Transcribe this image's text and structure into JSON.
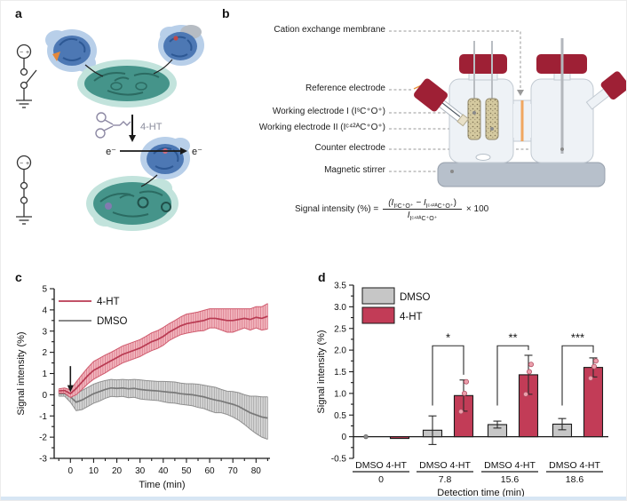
{
  "panels": {
    "a": "a",
    "b": "b",
    "c": "c",
    "d": "d"
  },
  "panel_a": {
    "arrow_label": "4-HT",
    "electron_left": "e⁻",
    "electron_right": "e⁻"
  },
  "panel_b": {
    "labels": [
      "Cation exchange membrane",
      "Reference electrode",
      "Working electrode I (IˢC⁺O⁺)",
      "Working electrode II (Iᶜ⁴²ᴬC⁺O⁺)",
      "Counter electrode",
      "Magnetic stirrer"
    ],
    "formula": {
      "lhs": "Signal intensity (%) =",
      "num_parts": [
        "(I",
        "IˢC⁺O⁺",
        " − I",
        "Iᶜ⁴²ᴬC⁺O⁺",
        ")"
      ],
      "den_parts": [
        "I",
        "Iᶜ⁴²ᴬC⁺O⁺"
      ],
      "rhs": "× 100"
    },
    "colors": {
      "cap_red": "#9e2035",
      "membrane_orange": "#f0a65f",
      "stirrer_gray": "#b7c0cb",
      "cell_fill": "#eef2f6"
    }
  },
  "chart_data": [
    {
      "panel": "c",
      "type": "line",
      "xlabel": "Time (min)",
      "ylabel": "Signal intensity (%)",
      "xlim": [
        -7,
        86
      ],
      "ylim": [
        -3,
        5
      ],
      "xticks": [
        0,
        10,
        20,
        30,
        40,
        50,
        60,
        70,
        80
      ],
      "yticks": [
        -3,
        -2,
        -1,
        0,
        1,
        2,
        3,
        4,
        5
      ],
      "x_minor_step": 5,
      "y_minor_step": 0.5,
      "annotation_arrow_x": 0,
      "legend_position": "top-left",
      "series": [
        {
          "name": "DMSO",
          "line_color": "#787878",
          "band_fill": "#d8d8d8",
          "hatch_color": "#a3a3a3",
          "edge_color": "#8f8f8f",
          "x": [
            -5,
            -2.5,
            0,
            2.5,
            5,
            7.5,
            10,
            12.5,
            15,
            17.5,
            20,
            22.5,
            25,
            27.5,
            30,
            32.5,
            35,
            37.5,
            40,
            42.5,
            45,
            47.5,
            50,
            52.5,
            55,
            57.5,
            60,
            62.5,
            65,
            67.5,
            70,
            72.5,
            75,
            77.5,
            80,
            82.5,
            85
          ],
          "y": [
            0.05,
            0.05,
            -0.1,
            -0.35,
            -0.25,
            -0.1,
            0.05,
            0.15,
            0.25,
            0.32,
            0.3,
            0.32,
            0.28,
            0.3,
            0.25,
            0.22,
            0.2,
            0.18,
            0.15,
            0.12,
            0.1,
            0.05,
            0.02,
            0.0,
            -0.05,
            -0.1,
            -0.18,
            -0.25,
            -0.3,
            -0.38,
            -0.45,
            -0.55,
            -0.7,
            -0.85,
            -0.95,
            -1.05,
            -1.1
          ],
          "err": [
            0.12,
            0.12,
            0.25,
            0.4,
            0.45,
            0.45,
            0.45,
            0.45,
            0.42,
            0.4,
            0.4,
            0.4,
            0.42,
            0.42,
            0.45,
            0.45,
            0.45,
            0.45,
            0.48,
            0.5,
            0.5,
            0.5,
            0.5,
            0.52,
            0.55,
            0.55,
            0.58,
            0.6,
            0.55,
            0.55,
            0.6,
            0.65,
            0.7,
            0.78,
            0.88,
            0.95,
            1.0
          ]
        },
        {
          "name": "4-HT",
          "line_color": "#b93a52",
          "band_fill": "#f2b8c0",
          "hatch_color": "#dc7d8d",
          "edge_color": "#cf5a6d",
          "x": [
            -5,
            -2.5,
            0,
            2.5,
            5,
            7.5,
            10,
            12.5,
            15,
            17.5,
            20,
            22.5,
            25,
            27.5,
            30,
            32.5,
            35,
            37.5,
            40,
            42.5,
            45,
            47.5,
            50,
            52.5,
            55,
            57.5,
            60,
            62.5,
            65,
            67.5,
            70,
            72.5,
            75,
            77.5,
            80,
            82.5,
            85
          ],
          "y": [
            0.18,
            0.2,
            0.05,
            0.3,
            0.6,
            0.9,
            1.15,
            1.3,
            1.45,
            1.6,
            1.75,
            1.9,
            2.0,
            2.1,
            2.2,
            2.35,
            2.5,
            2.6,
            2.75,
            2.95,
            3.1,
            3.25,
            3.35,
            3.4,
            3.45,
            3.5,
            3.6,
            3.6,
            3.55,
            3.5,
            3.5,
            3.55,
            3.6,
            3.55,
            3.65,
            3.6,
            3.7
          ],
          "err": [
            0.1,
            0.12,
            0.18,
            0.3,
            0.35,
            0.38,
            0.42,
            0.42,
            0.42,
            0.4,
            0.4,
            0.4,
            0.4,
            0.4,
            0.4,
            0.4,
            0.42,
            0.42,
            0.42,
            0.4,
            0.4,
            0.42,
            0.45,
            0.45,
            0.45,
            0.48,
            0.45,
            0.45,
            0.5,
            0.55,
            0.55,
            0.5,
            0.45,
            0.5,
            0.5,
            0.55,
            0.6
          ]
        }
      ],
      "legend_order": [
        "4-HT",
        "DMSO"
      ]
    },
    {
      "panel": "d",
      "type": "bar",
      "xlabel": "Detection time (min)",
      "ylabel": "Signal intensity (%)",
      "ylim": [
        -0.5,
        3.5
      ],
      "ytick_labels": [
        "-0.5",
        "0",
        "0.5",
        "1.0",
        "1.5",
        "2.0",
        "2.5",
        "3.0",
        "3.5"
      ],
      "ytick_values": [
        -0.5,
        0,
        0.5,
        1.0,
        1.5,
        2.0,
        2.5,
        3.0,
        3.5
      ],
      "y_minor_step": 0.25,
      "groups": [
        "0",
        "7.8",
        "15.6",
        "18.6"
      ],
      "group_axis_label": "DMSO 4-HT",
      "series": [
        {
          "name": "DMSO",
          "color": "#c6c6c6",
          "values": [
            0,
            0.15,
            0.28,
            0.29
          ],
          "errors": [
            0,
            0.33,
            0.08,
            0.13
          ]
        },
        {
          "name": "4-HT",
          "color": "#c23c57",
          "values": [
            -0.04,
            0.95,
            1.43,
            1.6
          ],
          "errors": [
            0,
            0.36,
            0.45,
            0.22
          ]
        }
      ],
      "scatter_points": {
        "DMSO": [
          [
            0
          ],
          [],
          [],
          []
        ],
        "4-HT": [
          [],
          [
            0.58,
            1.0,
            1.27
          ],
          [
            0.98,
            1.5,
            1.67
          ],
          [
            1.35,
            1.62,
            1.75
          ]
        ]
      },
      "significance": [
        "",
        "*",
        "**",
        "***"
      ]
    }
  ]
}
